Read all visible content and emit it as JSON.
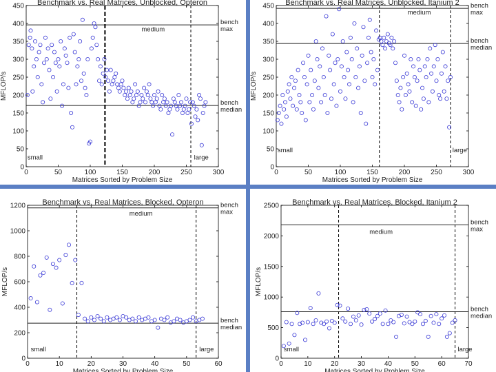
{
  "chart_data": [
    {
      "type": "scatter",
      "title": "Benchmark vs. Real Matrices, Unblocked, Opteron",
      "xlabel": "Matrices Sorted by Problem Size",
      "ylabel": "MFLOP/s",
      "xlim": [
        0,
        300
      ],
      "ylim": [
        0,
        450
      ],
      "xticks": [
        0,
        50,
        100,
        150,
        200,
        250,
        300
      ],
      "yticks": [
        0,
        50,
        100,
        150,
        200,
        250,
        300,
        350,
        400,
        450
      ],
      "hlines": [
        {
          "value": 396,
          "label1": "bench",
          "label2": "max"
        },
        {
          "value": 171,
          "label1": "bench",
          "label2": "median"
        }
      ],
      "vlines": [
        {
          "value": 123,
          "style": "thick-dash"
        },
        {
          "value": 257,
          "style": "dash"
        }
      ],
      "region_labels": [
        {
          "text": "small",
          "x": 2,
          "y": 20
        },
        {
          "text": "medium",
          "x": 180,
          "y": 378
        },
        {
          "text": "large",
          "x": 262,
          "y": 20
        }
      ],
      "series": [
        {
          "name": "matrices",
          "x": [
            2,
            4,
            6,
            7,
            9,
            10,
            12,
            14,
            16,
            18,
            20,
            22,
            24,
            26,
            28,
            30,
            32,
            34,
            36,
            38,
            40,
            42,
            44,
            46,
            48,
            50,
            52,
            54,
            56,
            58,
            60,
            62,
            64,
            66,
            68,
            70,
            72,
            74,
            76,
            78,
            80,
            82,
            84,
            86,
            88,
            90,
            92,
            94,
            96,
            98,
            100,
            102,
            104,
            106,
            108,
            110,
            112,
            114,
            116,
            118,
            120,
            122,
            124,
            126,
            128,
            130,
            132,
            134,
            136,
            138,
            140,
            142,
            144,
            146,
            148,
            150,
            152,
            154,
            156,
            158,
            160,
            162,
            164,
            166,
            168,
            170,
            172,
            174,
            176,
            178,
            180,
            182,
            184,
            186,
            188,
            190,
            192,
            194,
            196,
            198,
            200,
            202,
            204,
            206,
            208,
            210,
            212,
            214,
            216,
            218,
            220,
            222,
            224,
            226,
            228,
            230,
            232,
            234,
            236,
            238,
            240,
            242,
            244,
            246,
            248,
            250,
            252,
            254,
            256,
            258,
            260,
            262,
            264,
            266,
            268,
            270,
            272,
            274,
            276,
            278,
            280
          ],
          "y": [
            200,
            340,
            360,
            380,
            330,
            210,
            280,
            350,
            300,
            250,
            320,
            340,
            230,
            180,
            290,
            360,
            300,
            330,
            270,
            190,
            340,
            250,
            320,
            290,
            210,
            300,
            280,
            350,
            170,
            230,
            330,
            310,
            290,
            220,
            360,
            150,
            110,
            370,
            320,
            230,
            280,
            300,
            350,
            240,
            410,
            260,
            220,
            200,
            300,
            65,
            70,
            330,
            360,
            400,
            390,
            340,
            300,
            240,
            280,
            230,
            260,
            300,
            250,
            270,
            240,
            210,
            270,
            230,
            240,
            250,
            260,
            230,
            220,
            210,
            230,
            240,
            220,
            200,
            210,
            190,
            220,
            200,
            210,
            180,
            190,
            230,
            200,
            210,
            170,
            180,
            200,
            190,
            220,
            180,
            210,
            200,
            230,
            190,
            180,
            170,
            200,
            180,
            190,
            210,
            170,
            160,
            200,
            180,
            190,
            170,
            180,
            150,
            160,
            170,
            90,
            190,
            180,
            170,
            160,
            200,
            170,
            180,
            150,
            160,
            170,
            190,
            150,
            160,
            180,
            120,
            180,
            170,
            140,
            160,
            130,
            200,
            190,
            60,
            150,
            170,
            180
          ]
        }
      ]
    },
    {
      "type": "scatter",
      "title": "Benchmark vs. Real Matrices, Unblocked, Itanium 2",
      "xlabel": "Matrices Sorted by Problem Size",
      "ylabel": "MFLOP/s",
      "xlim": [
        0,
        300
      ],
      "ylim": [
        0,
        450
      ],
      "xticks": [
        0,
        50,
        100,
        150,
        200,
        250,
        300
      ],
      "yticks": [
        0,
        50,
        100,
        150,
        200,
        250,
        300,
        350,
        400,
        450
      ],
      "hlines": [
        {
          "value": 442,
          "label1": "bench",
          "label2": "max"
        },
        {
          "value": 344,
          "label1": "bench",
          "label2": "median"
        }
      ],
      "vlines": [
        {
          "value": 161,
          "style": "dash"
        },
        {
          "value": 272,
          "style": "dash"
        }
      ],
      "region_labels": [
        {
          "text": "small",
          "x": 2,
          "y": 40
        },
        {
          "text": "medium",
          "x": 205,
          "y": 425
        },
        {
          "text": "large",
          "x": 275,
          "y": 40
        }
      ],
      "series": [
        {
          "name": "matrices",
          "x": [
            2,
            4,
            6,
            8,
            10,
            12,
            14,
            16,
            18,
            20,
            22,
            24,
            26,
            28,
            30,
            32,
            34,
            36,
            38,
            40,
            42,
            44,
            46,
            48,
            50,
            52,
            54,
            56,
            58,
            60,
            62,
            64,
            66,
            68,
            70,
            72,
            74,
            76,
            78,
            80,
            82,
            84,
            86,
            88,
            90,
            92,
            94,
            96,
            98,
            100,
            102,
            104,
            106,
            108,
            110,
            112,
            114,
            116,
            118,
            120,
            122,
            124,
            126,
            128,
            130,
            132,
            134,
            136,
            138,
            140,
            142,
            144,
            146,
            148,
            150,
            152,
            154,
            156,
            158,
            160,
            162,
            164,
            166,
            168,
            170,
            172,
            174,
            176,
            178,
            180,
            182,
            184,
            186,
            188,
            190,
            192,
            194,
            196,
            198,
            200,
            202,
            204,
            206,
            208,
            210,
            212,
            214,
            216,
            218,
            220,
            222,
            224,
            226,
            228,
            230,
            232,
            234,
            236,
            238,
            240,
            242,
            244,
            246,
            248,
            250,
            252,
            254,
            256,
            258,
            260,
            262,
            264,
            266,
            268,
            270,
            272
          ],
          "y": [
            130,
            150,
            170,
            120,
            200,
            160,
            180,
            140,
            210,
            230,
            190,
            250,
            170,
            220,
            240,
            160,
            270,
            200,
            180,
            150,
            290,
            250,
            130,
            230,
            310,
            180,
            270,
            200,
            160,
            240,
            350,
            300,
            220,
            280,
            180,
            330,
            250,
            200,
            420,
            150,
            310,
            270,
            190,
            370,
            230,
            290,
            170,
            300,
            440,
            210,
            280,
            350,
            250,
            190,
            320,
            270,
            230,
            360,
            300,
            180,
            400,
            250,
            330,
            220,
            280,
            150,
            310,
            390,
            240,
            120,
            290,
            360,
            410,
            320,
            250,
            300,
            230,
            380,
            270,
            355,
            360,
            350,
            340,
            360,
            330,
            350,
            370,
            345,
            340,
            360,
            330,
            350,
            290,
            240,
            200,
            180,
            220,
            160,
            250,
            310,
            200,
            260,
            230,
            210,
            300,
            180,
            280,
            250,
            170,
            240,
            300,
            270,
            160,
            220,
            190,
            280,
            250,
            300,
            180,
            330,
            260,
            210,
            280,
            340,
            240,
            300,
            200,
            190,
            260,
            320,
            210,
            280,
            190,
            240,
            110,
            250
          ]
        }
      ]
    },
    {
      "type": "scatter",
      "title": "Benchmark vs. Real Matrices, Blocked, Opteron",
      "xlabel": "Matrices Sorted by Problem Size",
      "ylabel": "MFLOP/s",
      "xlim": [
        0,
        60
      ],
      "ylim": [
        0,
        1200
      ],
      "xticks": [
        0,
        10,
        20,
        30,
        40,
        50,
        60
      ],
      "yticks": [
        0,
        200,
        400,
        600,
        800,
        1000,
        1200
      ],
      "hlines": [
        {
          "value": 1180,
          "label1": "bench",
          "label2": "max"
        },
        {
          "value": 275,
          "label1": "bench",
          "label2": "median"
        }
      ],
      "vlines": [
        {
          "value": 15.5,
          "style": "dash"
        },
        {
          "value": 53,
          "style": "dash"
        }
      ],
      "region_labels": [
        {
          "text": "small",
          "x": 1,
          "y": 55
        },
        {
          "text": "medium",
          "x": 32,
          "y": 1120
        },
        {
          "text": "large",
          "x": 54,
          "y": 55
        }
      ],
      "series": [
        {
          "name": "matrices",
          "x": [
            1,
            2,
            3,
            4,
            5,
            6,
            7,
            8,
            9,
            10,
            11,
            12,
            13,
            14,
            15,
            16,
            17,
            18,
            19,
            20,
            21,
            22,
            23,
            24,
            25,
            26,
            27,
            28,
            29,
            30,
            31,
            32,
            33,
            34,
            35,
            36,
            37,
            38,
            39,
            40,
            41,
            42,
            43,
            44,
            45,
            46,
            47,
            48,
            49,
            50,
            51,
            52,
            53,
            54,
            55
          ],
          "y": [
            470,
            720,
            440,
            650,
            670,
            790,
            380,
            740,
            710,
            770,
            430,
            810,
            890,
            590,
            770,
            340,
            590,
            310,
            290,
            320,
            300,
            330,
            310,
            290,
            320,
            300,
            310,
            320,
            300,
            330,
            320,
            300,
            310,
            290,
            320,
            300,
            310,
            320,
            290,
            300,
            240,
            310,
            300,
            320,
            280,
            290,
            310,
            300,
            280,
            290,
            300,
            320,
            290,
            300,
            310
          ]
        }
      ]
    },
    {
      "type": "scatter",
      "title": "Benchmark vs. Real Matrices, Blocked, Itanium 2",
      "xlabel": "Matrices Sorted by Problem Size",
      "ylabel": "MFLOP/s",
      "xlim": [
        0,
        70
      ],
      "ylim": [
        0,
        2500
      ],
      "xticks": [
        0,
        10,
        20,
        30,
        40,
        50,
        60,
        70
      ],
      "yticks": [
        0,
        500,
        1000,
        1500,
        2000,
        2500
      ],
      "hlines": [
        {
          "value": 2180,
          "label1": "bench",
          "label2": "max"
        },
        {
          "value": 760,
          "label1": "bench",
          "label2": "median"
        }
      ],
      "vlines": [
        {
          "value": 21.5,
          "style": "dash"
        },
        {
          "value": 65,
          "style": "dash"
        }
      ],
      "region_labels": [
        {
          "text": "small",
          "x": 1,
          "y": 110
        },
        {
          "text": "medium",
          "x": 33,
          "y": 2030
        },
        {
          "text": "large",
          "x": 66,
          "y": 110
        }
      ],
      "series": [
        {
          "name": "matrices",
          "x": [
            1,
            2,
            3,
            4,
            5,
            6,
            7,
            8,
            9,
            10,
            11,
            12,
            13,
            14,
            15,
            16,
            17,
            18,
            19,
            20,
            21,
            22,
            23,
            24,
            25,
            26,
            27,
            28,
            29,
            30,
            31,
            32,
            33,
            34,
            35,
            36,
            37,
            38,
            39,
            40,
            41,
            42,
            43,
            44,
            45,
            46,
            47,
            48,
            49,
            50,
            51,
            52,
            53,
            54,
            55,
            56,
            57,
            58,
            59,
            60,
            61,
            62,
            63,
            64,
            65
          ],
          "y": [
            200,
            590,
            240,
            560,
            380,
            740,
            560,
            580,
            300,
            590,
            820,
            560,
            620,
            1060,
            580,
            560,
            600,
            490,
            610,
            580,
            870,
            860,
            650,
            600,
            810,
            560,
            680,
            620,
            700,
            550,
            790,
            800,
            730,
            600,
            640,
            690,
            730,
            560,
            780,
            560,
            620,
            590,
            350,
            690,
            710,
            570,
            680,
            590,
            560,
            600,
            750,
            720,
            560,
            610,
            350,
            690,
            580,
            720,
            560,
            650,
            700,
            350,
            410,
            580,
            620
          ]
        }
      ]
    }
  ]
}
